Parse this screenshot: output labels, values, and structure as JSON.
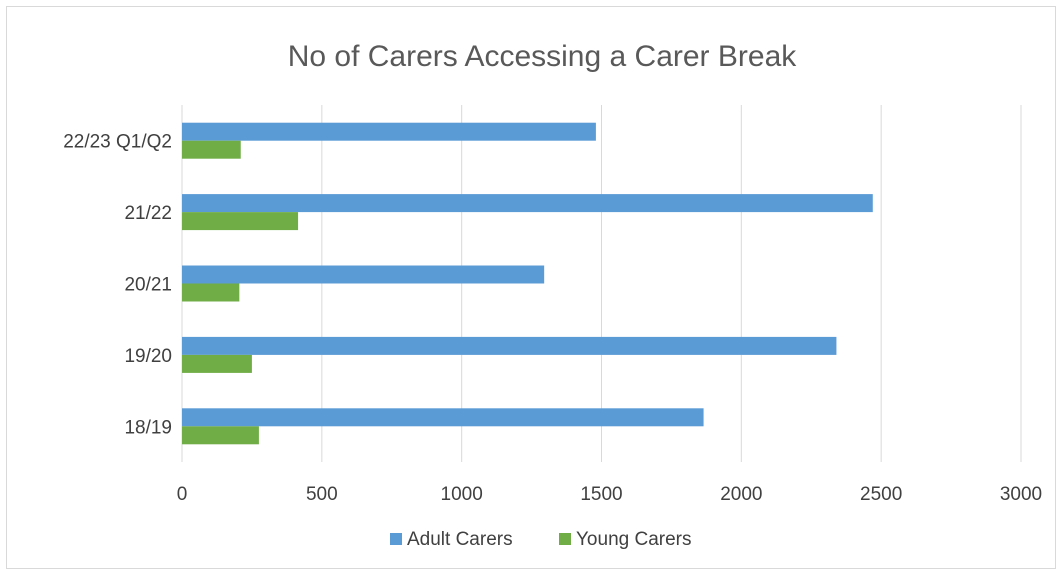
{
  "chart_data": {
    "type": "bar",
    "orientation": "horizontal",
    "title": "No of Carers Accessing a Carer Break",
    "xlabel": "",
    "ylabel": "",
    "categories": [
      "22/23  Q1/Q2",
      "21/22",
      "20/21",
      "19/20",
      "18/19"
    ],
    "series": [
      {
        "name": "Adult Carers",
        "color": "#5b9bd5",
        "values": [
          1480,
          2470,
          1295,
          2340,
          1865
        ]
      },
      {
        "name": "Young Carers",
        "color": "#70ad47",
        "values": [
          210,
          415,
          205,
          250,
          275
        ]
      }
    ],
    "xlim": [
      0,
      3000
    ],
    "xticks": [
      0,
      500,
      1000,
      1500,
      2000,
      2500,
      3000
    ],
    "xtick_labels": [
      "0",
      "500",
      "1000",
      "1500",
      "2000",
      "2500",
      "3000"
    ],
    "grid": "vertical",
    "legend": "bottom"
  }
}
